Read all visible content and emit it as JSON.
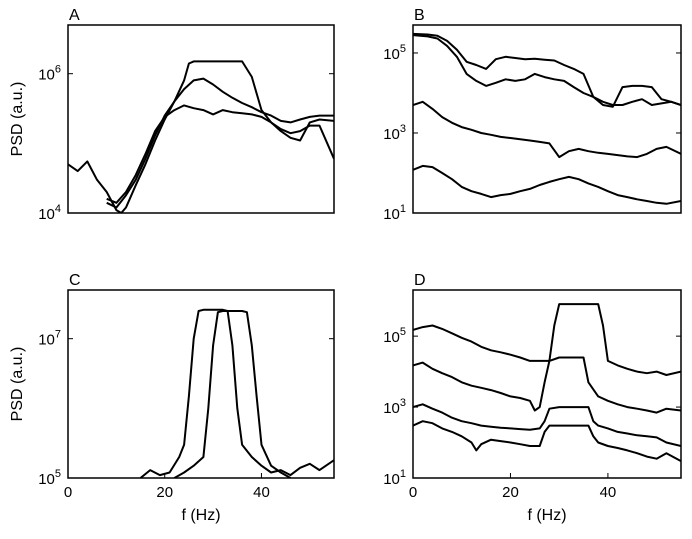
{
  "chart_data": [
    {
      "type": "line",
      "panel_label": "A",
      "xlabel": "",
      "ylabel": "PSD (a.u.)",
      "xlim": [
        0,
        55
      ],
      "ylim": [
        10000,
        5000000
      ],
      "yscale": "log",
      "yticks": [
        {
          "value": 10000,
          "base": "10",
          "exp": "4"
        },
        {
          "value": 1000000,
          "base": "10",
          "exp": "6"
        }
      ],
      "xticks": [],
      "grid": false,
      "series": [
        {
          "x": [
            0,
            2,
            4,
            6,
            8,
            10,
            11,
            12,
            14,
            16,
            18,
            20,
            22,
            24,
            25,
            26,
            28,
            30,
            32,
            34,
            36,
            38,
            40,
            42,
            44,
            46,
            48,
            50,
            52,
            55
          ],
          "y": [
            50000,
            40000,
            55000,
            30000,
            20000,
            11000,
            10000,
            12000,
            25000,
            50000,
            110000,
            220000,
            400000,
            800000,
            1400000,
            1500000,
            1500000,
            1500000,
            1500000,
            1500000,
            1500000,
            900000,
            300000,
            200000,
            150000,
            120000,
            110000,
            200000,
            220000,
            210000
          ]
        },
        {
          "x": [
            8,
            10,
            12,
            14,
            16,
            18,
            20,
            22,
            24,
            26,
            28,
            30,
            32,
            34,
            36,
            38,
            40,
            42,
            44,
            46,
            48,
            50,
            52,
            55
          ],
          "y": [
            14000,
            12000,
            18000,
            30000,
            60000,
            130000,
            250000,
            400000,
            600000,
            800000,
            850000,
            700000,
            550000,
            450000,
            380000,
            330000,
            280000,
            250000,
            210000,
            200000,
            220000,
            240000,
            250000,
            250000
          ]
        },
        {
          "x": [
            8,
            10,
            12,
            14,
            16,
            18,
            20,
            22,
            24,
            26,
            28,
            30,
            32,
            34,
            36,
            38,
            40,
            42,
            44,
            46,
            48,
            50,
            52,
            55
          ],
          "y": [
            16000,
            14000,
            20000,
            35000,
            70000,
            150000,
            240000,
            300000,
            350000,
            320000,
            300000,
            260000,
            300000,
            280000,
            270000,
            260000,
            240000,
            200000,
            160000,
            140000,
            150000,
            180000,
            180000,
            60000
          ]
        }
      ]
    },
    {
      "type": "line",
      "panel_label": "B",
      "xlabel": "",
      "ylabel": "",
      "xlim": [
        0,
        55
      ],
      "ylim": [
        10,
        500000
      ],
      "yscale": "log",
      "yticks": [
        {
          "value": 10,
          "base": "10",
          "exp": "1"
        },
        {
          "value": 1000,
          "base": "10",
          "exp": "3"
        },
        {
          "value": 100000,
          "base": "10",
          "exp": "5"
        }
      ],
      "xticks": [],
      "grid": false,
      "series": [
        {
          "x": [
            0,
            3,
            5,
            7,
            9,
            11,
            13,
            15,
            17,
            19,
            21,
            23,
            25,
            27,
            29,
            31,
            33,
            35,
            37,
            39,
            41,
            43,
            45,
            47,
            49,
            51,
            53,
            55
          ],
          "y": [
            300000,
            290000,
            270000,
            200000,
            120000,
            60000,
            50000,
            40000,
            70000,
            80000,
            75000,
            70000,
            72000,
            68000,
            65000,
            50000,
            40000,
            30000,
            8000,
            5000,
            4500,
            14000,
            15000,
            15000,
            14000,
            7000,
            6000,
            5000
          ]
        },
        {
          "x": [
            0,
            3,
            5,
            7,
            9,
            11,
            13,
            15,
            17,
            19,
            21,
            23,
            25,
            27,
            29,
            31,
            33,
            35,
            37,
            39,
            41,
            43,
            45,
            47,
            49,
            51,
            53,
            55
          ],
          "y": [
            280000,
            260000,
            230000,
            150000,
            80000,
            30000,
            20000,
            15000,
            18000,
            22000,
            20000,
            22000,
            30000,
            25000,
            22000,
            20000,
            14000,
            10000,
            8000,
            6000,
            5000,
            5000,
            6000,
            7000,
            5000,
            5500,
            6000,
            5000
          ]
        },
        {
          "x": [
            0,
            2,
            4,
            6,
            8,
            10,
            12,
            14,
            16,
            18,
            20,
            22,
            24,
            26,
            28,
            30,
            32,
            34,
            36,
            38,
            40,
            42,
            44,
            46,
            48,
            50,
            52,
            55
          ],
          "y": [
            5000,
            6000,
            4000,
            2500,
            1800,
            1400,
            1200,
            1000,
            900,
            800,
            750,
            700,
            650,
            600,
            550,
            250,
            350,
            400,
            350,
            320,
            300,
            280,
            260,
            250,
            300,
            400,
            450,
            300
          ]
        },
        {
          "x": [
            0,
            2,
            4,
            6,
            8,
            10,
            12,
            14,
            16,
            18,
            20,
            22,
            24,
            26,
            28,
            30,
            32,
            34,
            36,
            38,
            40,
            42,
            44,
            46,
            48,
            50,
            52,
            55
          ],
          "y": [
            120,
            150,
            140,
            100,
            70,
            45,
            35,
            30,
            25,
            28,
            30,
            35,
            40,
            50,
            60,
            70,
            80,
            70,
            55,
            45,
            35,
            28,
            25,
            22,
            20,
            18,
            17,
            20
          ]
        }
      ]
    },
    {
      "type": "line",
      "panel_label": "C",
      "xlabel": "f (Hz)",
      "ylabel": "PSD (a.u.)",
      "xlim": [
        0,
        55
      ],
      "ylim": [
        100000,
        50000000
      ],
      "yscale": "log",
      "yticks": [
        {
          "value": 100000,
          "base": "10",
          "exp": "5"
        },
        {
          "value": 10000000,
          "base": "10",
          "exp": "7"
        }
      ],
      "xticks": [
        {
          "value": 0,
          "label": "0"
        },
        {
          "value": 20,
          "label": "20"
        },
        {
          "value": 40,
          "label": "40"
        }
      ],
      "grid": false,
      "series": [
        {
          "x": [
            15,
            17,
            19,
            21,
            23,
            24,
            25,
            26,
            27,
            28,
            30,
            32,
            33,
            34,
            35,
            36,
            38,
            40,
            42,
            44,
            46,
            48,
            50,
            52,
            55
          ],
          "y": [
            100000,
            130000,
            110000,
            120000,
            200000,
            300000,
            1500000,
            10000000,
            25000000,
            26000000,
            26000000,
            26000000,
            25000000,
            8000000,
            1000000,
            300000,
            200000,
            150000,
            120000,
            130000,
            110000,
            140000,
            160000,
            130000,
            180000
          ]
        },
        {
          "x": [
            22,
            24,
            26,
            28,
            29,
            30,
            31,
            32,
            34,
            36,
            37,
            38,
            39,
            40,
            42,
            44,
            46
          ],
          "y": [
            100000,
            120000,
            150000,
            200000,
            1000000,
            8000000,
            24000000,
            25000000,
            25000000,
            25000000,
            24000000,
            8000000,
            1500000,
            300000,
            150000,
            120000,
            100000
          ]
        }
      ]
    },
    {
      "type": "line",
      "panel_label": "D",
      "xlabel": "f (Hz)",
      "ylabel": "",
      "xlim": [
        0,
        55
      ],
      "ylim": [
        10,
        2000000
      ],
      "yscale": "log",
      "yticks": [
        {
          "value": 10,
          "base": "10",
          "exp": "1"
        },
        {
          "value": 1000,
          "base": "10",
          "exp": "3"
        },
        {
          "value": 100000,
          "base": "10",
          "exp": "5"
        }
      ],
      "xticks": [
        {
          "value": 0,
          "label": "0"
        },
        {
          "value": 20,
          "label": "20"
        },
        {
          "value": 40,
          "label": "40"
        }
      ],
      "grid": false,
      "series": [
        {
          "x": [
            0,
            2,
            4,
            6,
            8,
            10,
            12,
            14,
            16,
            18,
            20,
            22,
            24,
            26,
            28,
            29,
            30,
            32,
            34,
            36,
            38,
            39,
            40,
            42,
            44,
            46,
            48,
            50,
            52,
            55
          ],
          "y": [
            150000,
            180000,
            200000,
            160000,
            120000,
            90000,
            70000,
            50000,
            40000,
            35000,
            30000,
            25000,
            20000,
            20000,
            20000,
            200000,
            800000,
            800000,
            800000,
            800000,
            800000,
            200000,
            20000,
            15000,
            12000,
            10000,
            9000,
            10000,
            8000,
            10000
          ]
        },
        {
          "x": [
            0,
            2,
            4,
            6,
            8,
            10,
            12,
            14,
            16,
            18,
            20,
            22,
            24,
            25,
            26,
            27,
            28,
            30,
            32,
            34,
            35,
            36,
            38,
            40,
            42,
            44,
            46,
            48,
            50,
            52,
            55
          ],
          "y": [
            15000,
            18000,
            12000,
            9000,
            7000,
            5000,
            4000,
            3500,
            3000,
            2500,
            2000,
            1800,
            1500,
            800,
            1000,
            5000,
            20000,
            25000,
            25000,
            25000,
            25000,
            5000,
            2000,
            1500,
            1200,
            1000,
            900,
            800,
            700,
            900,
            800
          ]
        },
        {
          "x": [
            0,
            2,
            4,
            6,
            8,
            10,
            12,
            14,
            16,
            18,
            20,
            22,
            24,
            26,
            27,
            28,
            30,
            32,
            34,
            36,
            37,
            38,
            40,
            42,
            44,
            46,
            48,
            50,
            52,
            55
          ],
          "y": [
            1000,
            1200,
            900,
            700,
            500,
            400,
            350,
            300,
            280,
            260,
            250,
            240,
            230,
            250,
            400,
            900,
            1000,
            1000,
            1000,
            1000,
            400,
            300,
            250,
            200,
            180,
            160,
            150,
            140,
            100,
            80
          ]
        },
        {
          "x": [
            0,
            2,
            4,
            6,
            8,
            10,
            12,
            13,
            14,
            16,
            18,
            20,
            22,
            24,
            26,
            27,
            28,
            30,
            32,
            34,
            36,
            37,
            38,
            40,
            42,
            44,
            46,
            48,
            50,
            52,
            55
          ],
          "y": [
            300,
            400,
            350,
            250,
            200,
            150,
            100,
            60,
            90,
            120,
            110,
            100,
            90,
            80,
            80,
            200,
            300,
            300,
            300,
            300,
            300,
            150,
            100,
            80,
            70,
            60,
            50,
            40,
            35,
            50,
            30
          ]
        }
      ]
    }
  ]
}
